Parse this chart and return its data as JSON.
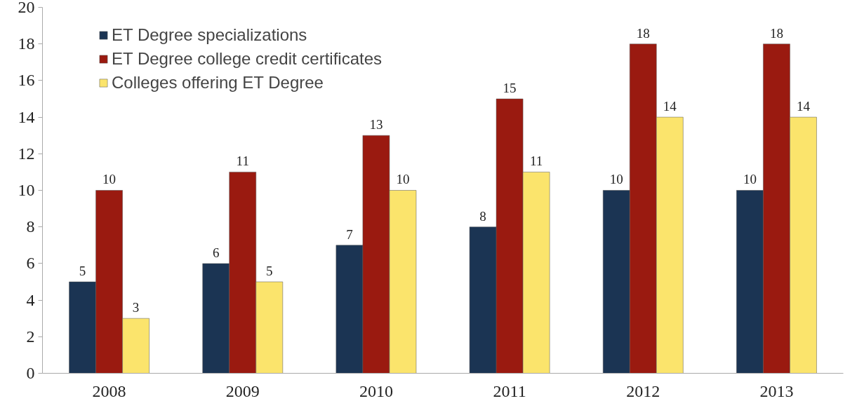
{
  "chart_data": {
    "type": "bar",
    "categories": [
      "2008",
      "2009",
      "2010",
      "2011",
      "2012",
      "2013"
    ],
    "series": [
      {
        "name": "ET Degree specializations",
        "color": "#1b3453",
        "values": [
          5,
          6,
          7,
          8,
          10,
          10
        ]
      },
      {
        "name": "ET Degree college credit certificates",
        "color": "#9a1a10",
        "values": [
          10,
          11,
          13,
          15,
          18,
          18
        ]
      },
      {
        "name": "Colleges offering ET Degree",
        "color": "#fbe46c",
        "values": [
          3,
          5,
          10,
          11,
          14,
          14
        ]
      }
    ],
    "ylim": [
      0,
      20
    ],
    "yticks": [
      0,
      2,
      4,
      6,
      8,
      10,
      12,
      14,
      16,
      18,
      20
    ],
    "grid": false,
    "legend": "top left",
    "data_labels": true
  }
}
